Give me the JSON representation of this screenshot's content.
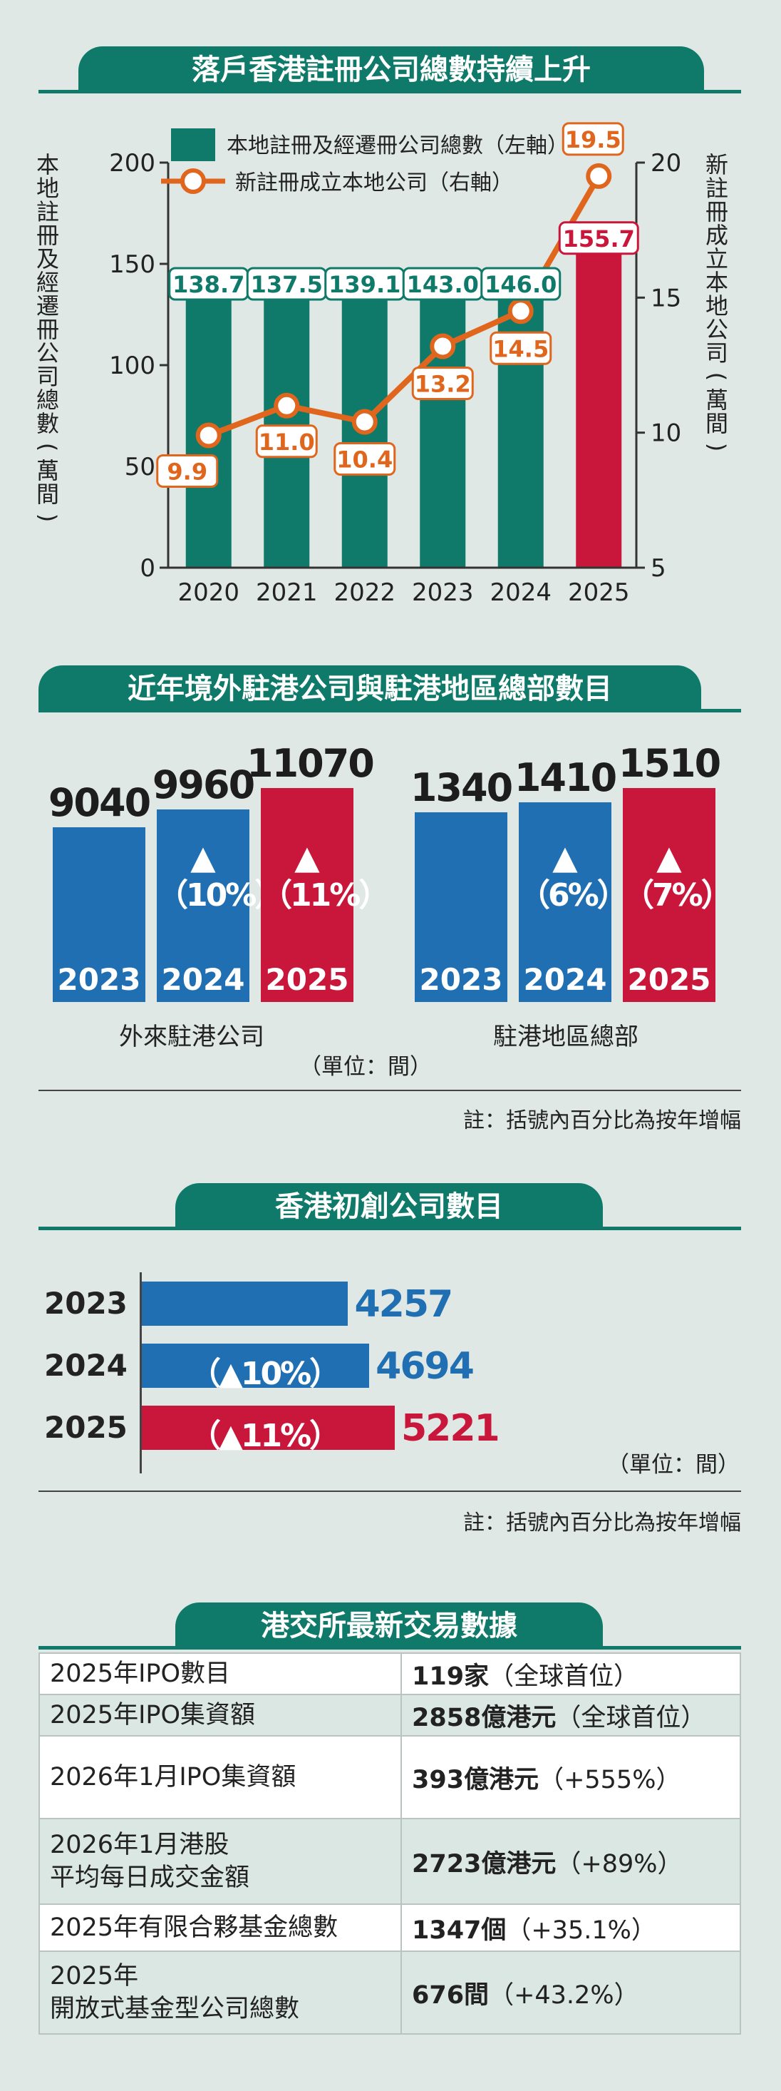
{
  "section1": {
    "title": "落戶香港註冊公司總數持續上升",
    "legend_bar": "本地註冊及經遷冊公司總數（左軸）",
    "legend_line": "新註冊成立本地公司（右軸）",
    "left_axis_title": "本地註冊及經遷冊公司總數（萬間）",
    "right_axis_title": "新註冊成立本地公司（萬間）",
    "colors": {
      "bar": "#0f7a69",
      "highlight": "#c8173a",
      "line": "#e0661d"
    }
  },
  "chart_data": [
    {
      "type": "bar+line",
      "title": "落戶香港註冊公司總數持續上升",
      "categories": [
        "2020",
        "2021",
        "2022",
        "2023",
        "2024",
        "2025"
      ],
      "series": [
        {
          "name": "本地註冊及經遷冊公司總數（左軸）",
          "axis": "left",
          "type": "bar",
          "values": [
            138.7,
            137.5,
            139.1,
            143.0,
            146.0,
            155.7
          ],
          "labels": [
            "138.7",
            "137.5",
            "139.1",
            "143.0",
            "146.0",
            "155.7"
          ]
        },
        {
          "name": "新註冊成立本地公司（右軸）",
          "axis": "right",
          "type": "line",
          "values": [
            9.9,
            11.0,
            10.4,
            13.2,
            14.5,
            19.5
          ],
          "labels": [
            "9.9",
            "11.0",
            "10.4",
            "13.2",
            "14.5",
            "19.5"
          ]
        }
      ],
      "ylim_left": [
        0,
        200
      ],
      "yticks_left": [
        "0",
        "50",
        "100",
        "150",
        "200"
      ],
      "ylim_right": [
        5,
        20
      ],
      "yticks_right": [
        "5",
        "10",
        "15",
        "20"
      ],
      "ylabel_left": "本地註冊及經遷冊公司總數（萬間）",
      "ylabel_right": "新註冊成立本地公司（萬間）"
    },
    {
      "type": "bar",
      "title": "近年境外駐港公司與駐港地區總部數目",
      "groups": [
        {
          "name": "外來駐港公司",
          "categories": [
            "2023",
            "2024",
            "2025"
          ],
          "values": [
            9040,
            9960,
            11070
          ],
          "labels": [
            "9040",
            "9960",
            "11070"
          ],
          "changes": [
            "",
            "▲（10%）",
            "▲（11%）"
          ]
        },
        {
          "name": "駐港地區總部",
          "categories": [
            "2023",
            "2024",
            "2025"
          ],
          "values": [
            1340,
            1410,
            1510
          ],
          "labels": [
            "1340",
            "1410",
            "1510"
          ],
          "changes": [
            "",
            "▲（6%）",
            "▲（7%）"
          ]
        }
      ],
      "unit": "（單位：間）",
      "note": "註：括號內百分比為按年增幅"
    },
    {
      "type": "bar",
      "orientation": "horizontal",
      "title": "香港初創公司數目",
      "categories": [
        "2023",
        "2024",
        "2025"
      ],
      "values": [
        4257,
        4694,
        5221
      ],
      "labels": [
        "4257",
        "4694",
        "5221"
      ],
      "changes": [
        "",
        "（▲10%）",
        "（▲11%）"
      ],
      "unit": "（單位：間）",
      "note": "註：括號內百分比為按年增幅"
    },
    {
      "type": "table",
      "title": "港交所最新交易數據",
      "rows": [
        {
          "label": "2025年IPO數目",
          "bold": "119家",
          "rest": "（全球首位）"
        },
        {
          "label": "2025年IPO集資額",
          "bold": "2858億港元",
          "rest": "（全球首位）"
        },
        {
          "label": "2026年1月IPO集資額",
          "bold": "393億港元",
          "rest": "（+555%）"
        },
        {
          "label": "2026年1月港股\n平均每日成交金額",
          "bold": "2723億港元",
          "rest": "（+89%）"
        },
        {
          "label": "2025年有限合夥基金總數",
          "bold": "1347個",
          "rest": "（+35.1%）"
        },
        {
          "label": "2025年\n開放式基金型公司總數",
          "bold": "676間",
          "rest": "（+43.2%）"
        }
      ]
    }
  ],
  "section2": {
    "title": "近年境外駐港公司與駐港地區總部數目",
    "group1": "外來駐港公司",
    "group2": "駐港地區總部",
    "unit": "（單位：間）",
    "note": "註：括號內百分比為按年增幅",
    "colors": {
      "bar": "#1f6fb2",
      "highlight": "#c8173a"
    }
  },
  "section3": {
    "title": "香港初創公司數目",
    "unit": "（單位：間）",
    "note": "註：括號內百分比為按年增幅",
    "colors": {
      "bar": "#1f6fb2",
      "highlight": "#c8173a"
    }
  },
  "section4": {
    "title": "港交所最新交易數據"
  }
}
